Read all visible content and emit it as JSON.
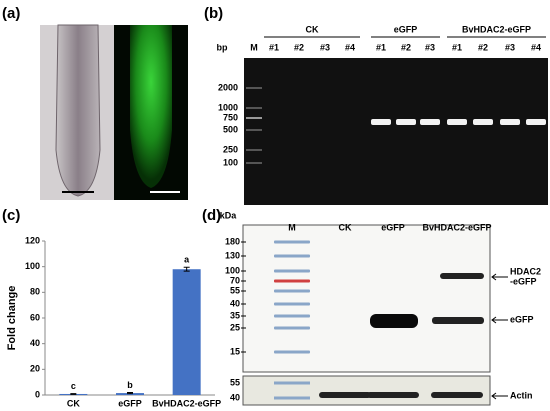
{
  "panels": {
    "a": "(a)",
    "b": "(b)",
    "c": "(c)",
    "d": "(d)"
  },
  "gel": {
    "groups": [
      "CK",
      "eGFP",
      "BvHDAC2-eGFP"
    ],
    "unit": "bp",
    "lanes": [
      "M",
      "#1",
      "#2",
      "#3",
      "#4",
      "#1",
      "#2",
      "#3",
      "#1",
      "#2",
      "#3",
      "#4"
    ],
    "ladder": [
      2000,
      1000,
      750,
      500,
      250,
      100
    ]
  },
  "blot": {
    "unit": "kDa",
    "lanes": [
      "M",
      "CK",
      "eGFP",
      "BvHDAC2-eGFP"
    ],
    "markers": [
      180,
      130,
      100,
      70,
      55,
      40,
      35,
      25,
      15
    ],
    "band_labels": [
      "HDAC2",
      "-eGFP",
      "eGFP"
    ],
    "actin_markers": [
      55,
      40
    ],
    "actin": "Actin"
  },
  "chart_data": {
    "type": "bar",
    "ylabel": "Fold change",
    "categories": [
      "CK",
      "eGFP",
      "BvHDAC2-eGFP"
    ],
    "values": [
      0.8,
      1.5,
      98
    ],
    "errors": [
      0.3,
      0.4,
      1.5
    ],
    "annotations": [
      "c",
      "b",
      "a"
    ],
    "color": "#4472c4",
    "ylim": [
      0,
      120
    ],
    "yticks": [
      0,
      20,
      40,
      60,
      80,
      100,
      120
    ]
  }
}
